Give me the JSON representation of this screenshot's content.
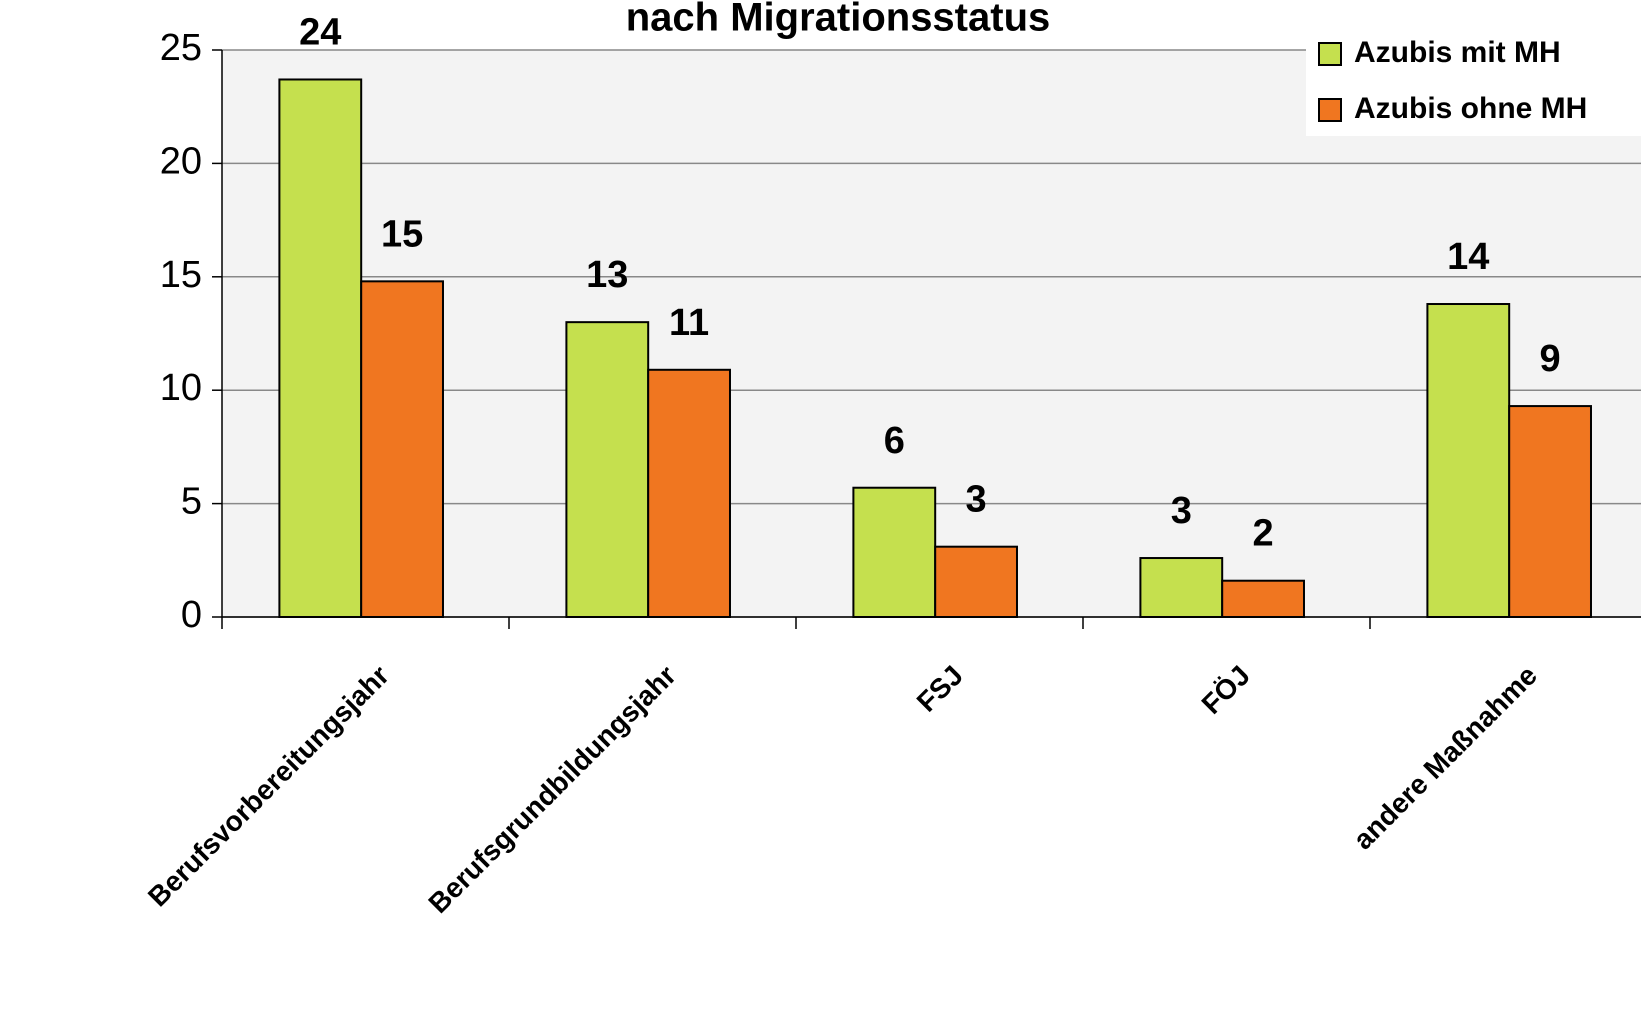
{
  "chart_data": {
    "type": "bar",
    "title": "nach Migrationsstatus",
    "categories": [
      "Berufsvorbereitungsjahr",
      "Berufsgrundbildungsjahr",
      "FSJ",
      "FÖJ",
      "andere Maßnahme"
    ],
    "series": [
      {
        "name": "Azubis mit MH",
        "color": "#c5e04e",
        "values": [
          23.7,
          13,
          5.7,
          2.6,
          13.8
        ],
        "value_labels": [
          "24",
          "13",
          "6",
          "3",
          "14"
        ]
      },
      {
        "name": "Azubis ohne MH",
        "color": "#f07620",
        "values": [
          14.8,
          10.9,
          3.1,
          1.6,
          9.3
        ],
        "value_labels": [
          "15",
          "11",
          "3",
          "2",
          "9"
        ]
      }
    ],
    "ylim": [
      0,
      25
    ],
    "yticks": [
      0,
      5,
      10,
      15,
      20,
      25
    ],
    "grid": true,
    "legend": "top-right"
  }
}
